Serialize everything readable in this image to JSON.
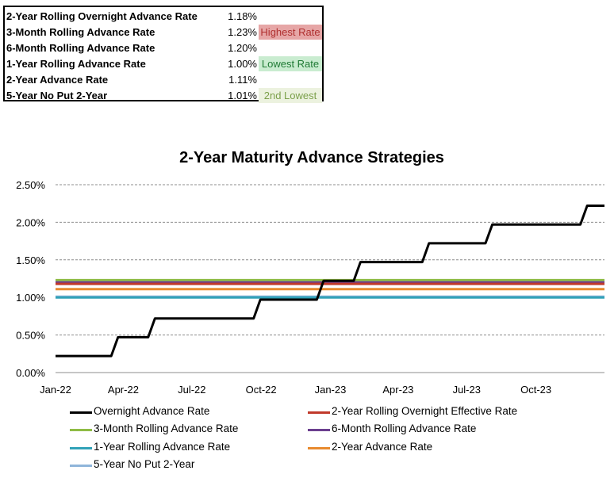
{
  "summary_table": {
    "rows": [
      {
        "name": "2-Year Rolling Overnight Advance Rate",
        "rate": "1.18%",
        "tag": "",
        "tag_color": ""
      },
      {
        "name": "3-Month Rolling Advance Rate",
        "rate": "1.23%",
        "tag": "Highest Rate",
        "tag_color": "#e6a6a6",
        "tag_text_color": "#b03030"
      },
      {
        "name": "6-Month Rolling Advance Rate",
        "rate": "1.20%",
        "tag": "",
        "tag_color": ""
      },
      {
        "name": "1-Year Rolling Advance Rate",
        "rate": "1.00%",
        "tag": "Lowest Rate",
        "tag_color": "#c9ecd0",
        "tag_text_color": "#1f7a34"
      },
      {
        "name": "2-Year Advance Rate",
        "rate": "1.11%",
        "tag": "",
        "tag_color": ""
      },
      {
        "name": "5-Year No Put 2-Year",
        "rate": "1.01%",
        "tag": "2nd Lowest",
        "tag_color": "#ecf2df",
        "tag_text_color": "#7ba04a"
      }
    ]
  },
  "chart_data": {
    "type": "line",
    "title": "2-Year Maturity Advance Strategies",
    "xlabel": "",
    "ylabel": "",
    "xlim": [
      "2022-01",
      "2023-12"
    ],
    "ylim": [
      0,
      0.025
    ],
    "yticks": [
      "0.00%",
      "0.50%",
      "1.00%",
      "1.50%",
      "2.00%",
      "2.50%"
    ],
    "xticks": [
      "Jan-22",
      "Apr-22",
      "Jul-22",
      "Oct-22",
      "Jan-23",
      "Apr-23",
      "Jul-23",
      "Oct-23"
    ],
    "grid": true,
    "legend_position": "bottom",
    "series": [
      {
        "name": "Overnight Advance Rate",
        "color": "#000000",
        "step": true,
        "points": [
          [
            "2022-01-01",
            0.0022
          ],
          [
            "2022-03-16",
            0.0022
          ],
          [
            "2022-03-25",
            0.0047
          ],
          [
            "2022-05-04",
            0.0047
          ],
          [
            "2022-05-13",
            0.0072
          ],
          [
            "2022-09-21",
            0.0072
          ],
          [
            "2022-09-30",
            0.0097
          ],
          [
            "2022-11-02",
            0.0097
          ],
          [
            "2022-12-14",
            0.0097
          ],
          [
            "2022-12-23",
            0.0122
          ],
          [
            "2023-02-01",
            0.0122
          ],
          [
            "2023-02-10",
            0.0147
          ],
          [
            "2023-05-03",
            0.0147
          ],
          [
            "2023-05-12",
            0.0172
          ],
          [
            "2023-07-26",
            0.0172
          ],
          [
            "2023-08-04",
            0.0197
          ],
          [
            "2023-11-29",
            0.0197
          ],
          [
            "2023-12-08",
            0.0222
          ],
          [
            "2023-12-31",
            0.0222
          ]
        ]
      },
      {
        "name": "2-Year Rolling Overnight Effective Rate",
        "color": "#c0392b",
        "value": 0.0118
      },
      {
        "name": "3-Month Rolling Advance Rate",
        "color": "#8fbc45",
        "value": 0.0123
      },
      {
        "name": "6-Month Rolling Advance Rate",
        "color": "#6b3f8f",
        "value": 0.012
      },
      {
        "name": "1-Year Rolling Advance Rate",
        "color": "#31a2b8",
        "value": 0.01
      },
      {
        "name": "2-Year Advance Rate",
        "color": "#e88a2e",
        "value": 0.0111
      },
      {
        "name": "5-Year No Put 2-Year",
        "color": "#8fb5da",
        "value": 0.0101
      }
    ]
  }
}
